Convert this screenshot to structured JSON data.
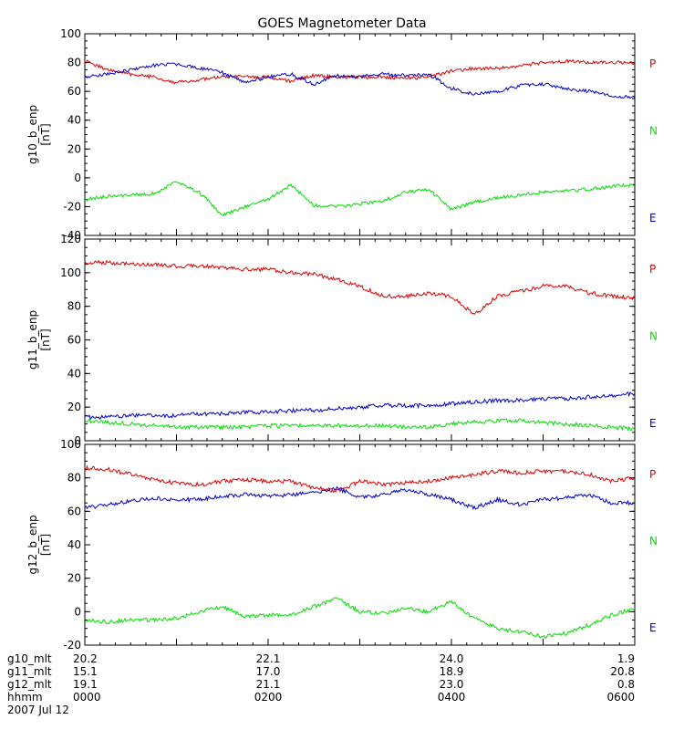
{
  "chart_data": [
    {
      "type": "line",
      "title": "GOES Magnetometer Data",
      "ylabel": "g10_b_enp",
      "yunits": "[nT]",
      "ylim": [
        -40,
        100
      ],
      "yticks": [
        -40,
        -20,
        0,
        20,
        40,
        60,
        80,
        100
      ],
      "xlim": [
        0,
        6
      ],
      "x": [
        0,
        0.25,
        0.5,
        0.75,
        1,
        1.25,
        1.5,
        1.75,
        2,
        2.25,
        2.5,
        2.75,
        3,
        3.25,
        3.5,
        3.75,
        4,
        4.25,
        4.5,
        4.75,
        5,
        5.25,
        5.5,
        5.75,
        6
      ],
      "series": [
        {
          "name": "P",
          "color": "#dd0000",
          "values": [
            81,
            75,
            72,
            70,
            66,
            68,
            70,
            70,
            70,
            67,
            71,
            70,
            70,
            70,
            69,
            70,
            74,
            76,
            76,
            78,
            80,
            81,
            80,
            80,
            80
          ]
        },
        {
          "name": "N",
          "color": "#00dd00",
          "values": [
            -15,
            -13,
            -12,
            -11,
            -3,
            -10,
            -26,
            -20,
            -15,
            -5,
            -19,
            -20,
            -18,
            -16,
            -10,
            -8,
            -22,
            -17,
            -14,
            -12,
            -10,
            -9,
            -8,
            -6,
            -5
          ]
        },
        {
          "name": "E",
          "color": "#0000cc",
          "values": [
            70,
            72,
            75,
            78,
            79,
            76,
            73,
            66,
            70,
            72,
            65,
            71,
            70,
            72,
            71,
            72,
            62,
            58,
            60,
            64,
            65,
            62,
            60,
            57,
            56
          ]
        }
      ]
    },
    {
      "type": "line",
      "ylabel": "g11_b_enp",
      "yunits": "[nT]",
      "ylim": [
        0,
        120
      ],
      "yticks": [
        0,
        20,
        40,
        60,
        80,
        100,
        120
      ],
      "xlim": [
        0,
        6
      ],
      "x": [
        0,
        0.25,
        0.5,
        0.75,
        1,
        1.25,
        1.5,
        1.75,
        2,
        2.25,
        2.5,
        2.75,
        3,
        3.25,
        3.5,
        3.75,
        4,
        4.25,
        4.5,
        4.75,
        5,
        5.25,
        5.5,
        5.75,
        6
      ],
      "series": [
        {
          "name": "P",
          "color": "#dd0000",
          "values": [
            106,
            106,
            105,
            105,
            104,
            104,
            103,
            102,
            102,
            100,
            99,
            96,
            92,
            86,
            86,
            88,
            86,
            75,
            86,
            89,
            92,
            92,
            88,
            86,
            85
          ]
        },
        {
          "name": "N",
          "color": "#00dd00",
          "values": [
            12,
            11,
            10,
            9,
            8,
            8,
            8,
            8,
            9,
            9,
            9,
            9,
            9,
            9,
            8,
            8,
            10,
            11,
            12,
            12,
            11,
            10,
            9,
            8,
            7
          ]
        },
        {
          "name": "E",
          "color": "#0000cc",
          "values": [
            14,
            14,
            15,
            15,
            15,
            16,
            16,
            17,
            17,
            18,
            18,
            19,
            20,
            21,
            21,
            21,
            22,
            23,
            24,
            24,
            25,
            25,
            26,
            27,
            28
          ]
        }
      ]
    },
    {
      "type": "line",
      "ylabel": "g12_b_enp",
      "yunits": "[nT]",
      "ylim": [
        -20,
        100
      ],
      "yticks": [
        -20,
        0,
        20,
        40,
        60,
        80,
        100
      ],
      "xlim": [
        0,
        6
      ],
      "x": [
        0,
        0.25,
        0.5,
        0.75,
        1,
        1.25,
        1.5,
        1.75,
        2,
        2.25,
        2.5,
        2.75,
        3,
        3.25,
        3.5,
        3.75,
        4,
        4.25,
        4.5,
        4.75,
        5,
        5.25,
        5.5,
        5.75,
        6
      ],
      "series": [
        {
          "name": "P",
          "color": "#dd0000",
          "values": [
            86,
            85,
            82,
            79,
            77,
            76,
            78,
            79,
            78,
            78,
            74,
            72,
            78,
            76,
            77,
            78,
            80,
            82,
            84,
            83,
            84,
            84,
            82,
            78,
            80
          ]
        },
        {
          "name": "N",
          "color": "#00dd00",
          "values": [
            -5,
            -6,
            -5,
            -5,
            -4,
            0,
            3,
            -3,
            -2,
            -2,
            3,
            8,
            0,
            -1,
            2,
            0,
            6,
            -4,
            -10,
            -12,
            -15,
            -13,
            -8,
            -2,
            2
          ]
        },
        {
          "name": "E",
          "color": "#0000cc",
          "values": [
            62,
            64,
            66,
            68,
            67,
            67,
            69,
            70,
            69,
            70,
            71,
            74,
            68,
            70,
            73,
            70,
            67,
            62,
            67,
            64,
            67,
            68,
            70,
            65,
            65
          ]
        }
      ]
    }
  ],
  "footer": {
    "row_labels": [
      "g10_mlt",
      "g11_mlt",
      "g12_mlt",
      "hhmm"
    ],
    "columns": [
      [
        "20.2",
        "15.1",
        "19.1",
        "0000"
      ],
      [
        "22.1",
        "17.0",
        "21.1",
        "0200"
      ],
      [
        "24.0",
        "18.9",
        "23.0",
        "0400"
      ],
      [
        "1.9",
        "20.8",
        "0.8",
        "0600"
      ]
    ],
    "date": "2007 Jul 12"
  }
}
